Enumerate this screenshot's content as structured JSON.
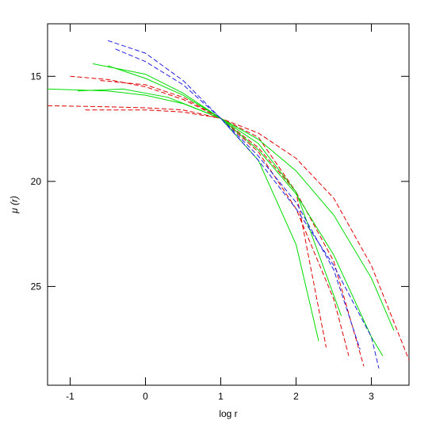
{
  "chart_data": {
    "type": "line",
    "x_label": "log r",
    "y_label": "μ (r)",
    "xlim": [
      -1.3,
      3.5
    ],
    "ylim": [
      12.5,
      29.7
    ],
    "y_inverted": true,
    "xticks": [
      -1,
      0,
      1,
      2,
      3
    ],
    "yticks": [
      15,
      20,
      25
    ],
    "series": [
      {
        "color": "#e00000",
        "linestyle": "dashed",
        "x": [
          -1.3,
          -0.5,
          0,
          0.5,
          1,
          1.5,
          2,
          2.5,
          3,
          3.5
        ],
        "values": [
          16.4,
          16.45,
          16.5,
          16.6,
          17,
          17.7,
          18.9,
          20.8,
          24.0,
          28.5
        ]
      },
      {
        "color": "#e00000",
        "linestyle": "dashed",
        "x": [
          -1,
          -0.5,
          0,
          0.5,
          1,
          1.5,
          2,
          2.5,
          2.9
        ],
        "values": [
          15,
          15.15,
          15.5,
          16.1,
          17,
          18.4,
          20.5,
          23.8,
          28.8
        ]
      },
      {
        "color": "#e00000",
        "linestyle": "dashed",
        "x": [
          -0.8,
          -0.3,
          0,
          0.5,
          1,
          1.5,
          2,
          2.4
        ],
        "values": [
          16.6,
          16.6,
          16.6,
          16.7,
          17,
          17.9,
          20.5,
          27.9
        ]
      },
      {
        "color": "#e00000",
        "linestyle": "dashed",
        "x": [
          -0.6,
          0,
          0.5,
          1,
          1.5,
          2,
          2.5,
          2.7
        ],
        "values": [
          15.2,
          15.4,
          16.0,
          17,
          18.6,
          21.3,
          25.6,
          28.3
        ]
      },
      {
        "color": "#00dd00",
        "linestyle": "solid",
        "x": [
          -1.3,
          -0.5,
          0,
          0.5,
          1,
          1.5,
          2,
          2.5,
          3,
          3.3
        ],
        "values": [
          15.6,
          15.7,
          15.9,
          16.3,
          17,
          18.0,
          19.5,
          21.6,
          24.6,
          27.1
        ]
      },
      {
        "color": "#00dd00",
        "linestyle": "solid",
        "x": [
          -0.7,
          0,
          0.5,
          1,
          1.5,
          2,
          2.3
        ],
        "values": [
          14.4,
          14.9,
          15.8,
          17,
          19.0,
          23.0,
          27.6
        ]
      },
      {
        "color": "#00dd00",
        "linestyle": "solid",
        "x": [
          -0.5,
          0,
          0.5,
          1,
          1.5,
          2,
          2.5,
          3,
          3.15
        ],
        "values": [
          14.5,
          15.1,
          15.9,
          17,
          18.5,
          20.6,
          23.5,
          27.4,
          28.3
        ]
      },
      {
        "color": "#00dd00",
        "linestyle": "solid",
        "x": [
          -0.9,
          -0.3,
          0.3,
          1,
          1.5,
          2,
          2.6
        ],
        "values": [
          15.7,
          15.6,
          16.0,
          17,
          18.2,
          20.5,
          26.4
        ]
      },
      {
        "color": "#2020e0",
        "linestyle": "dashed",
        "x": [
          -0.5,
          0,
          0.5,
          1,
          1.5,
          2,
          2.5,
          3,
          3.1
        ],
        "values": [
          13.3,
          13.9,
          15.2,
          17,
          19.0,
          21.3,
          24.0,
          27.4,
          28.9
        ]
      },
      {
        "color": "#2020e0",
        "linestyle": "dashed",
        "x": [
          -0.4,
          0,
          0.5,
          1,
          1.5,
          2,
          2.5,
          2.85
        ],
        "values": [
          13.7,
          14.3,
          15.4,
          17,
          18.8,
          21.0,
          24.2,
          28.0
        ]
      }
    ]
  }
}
